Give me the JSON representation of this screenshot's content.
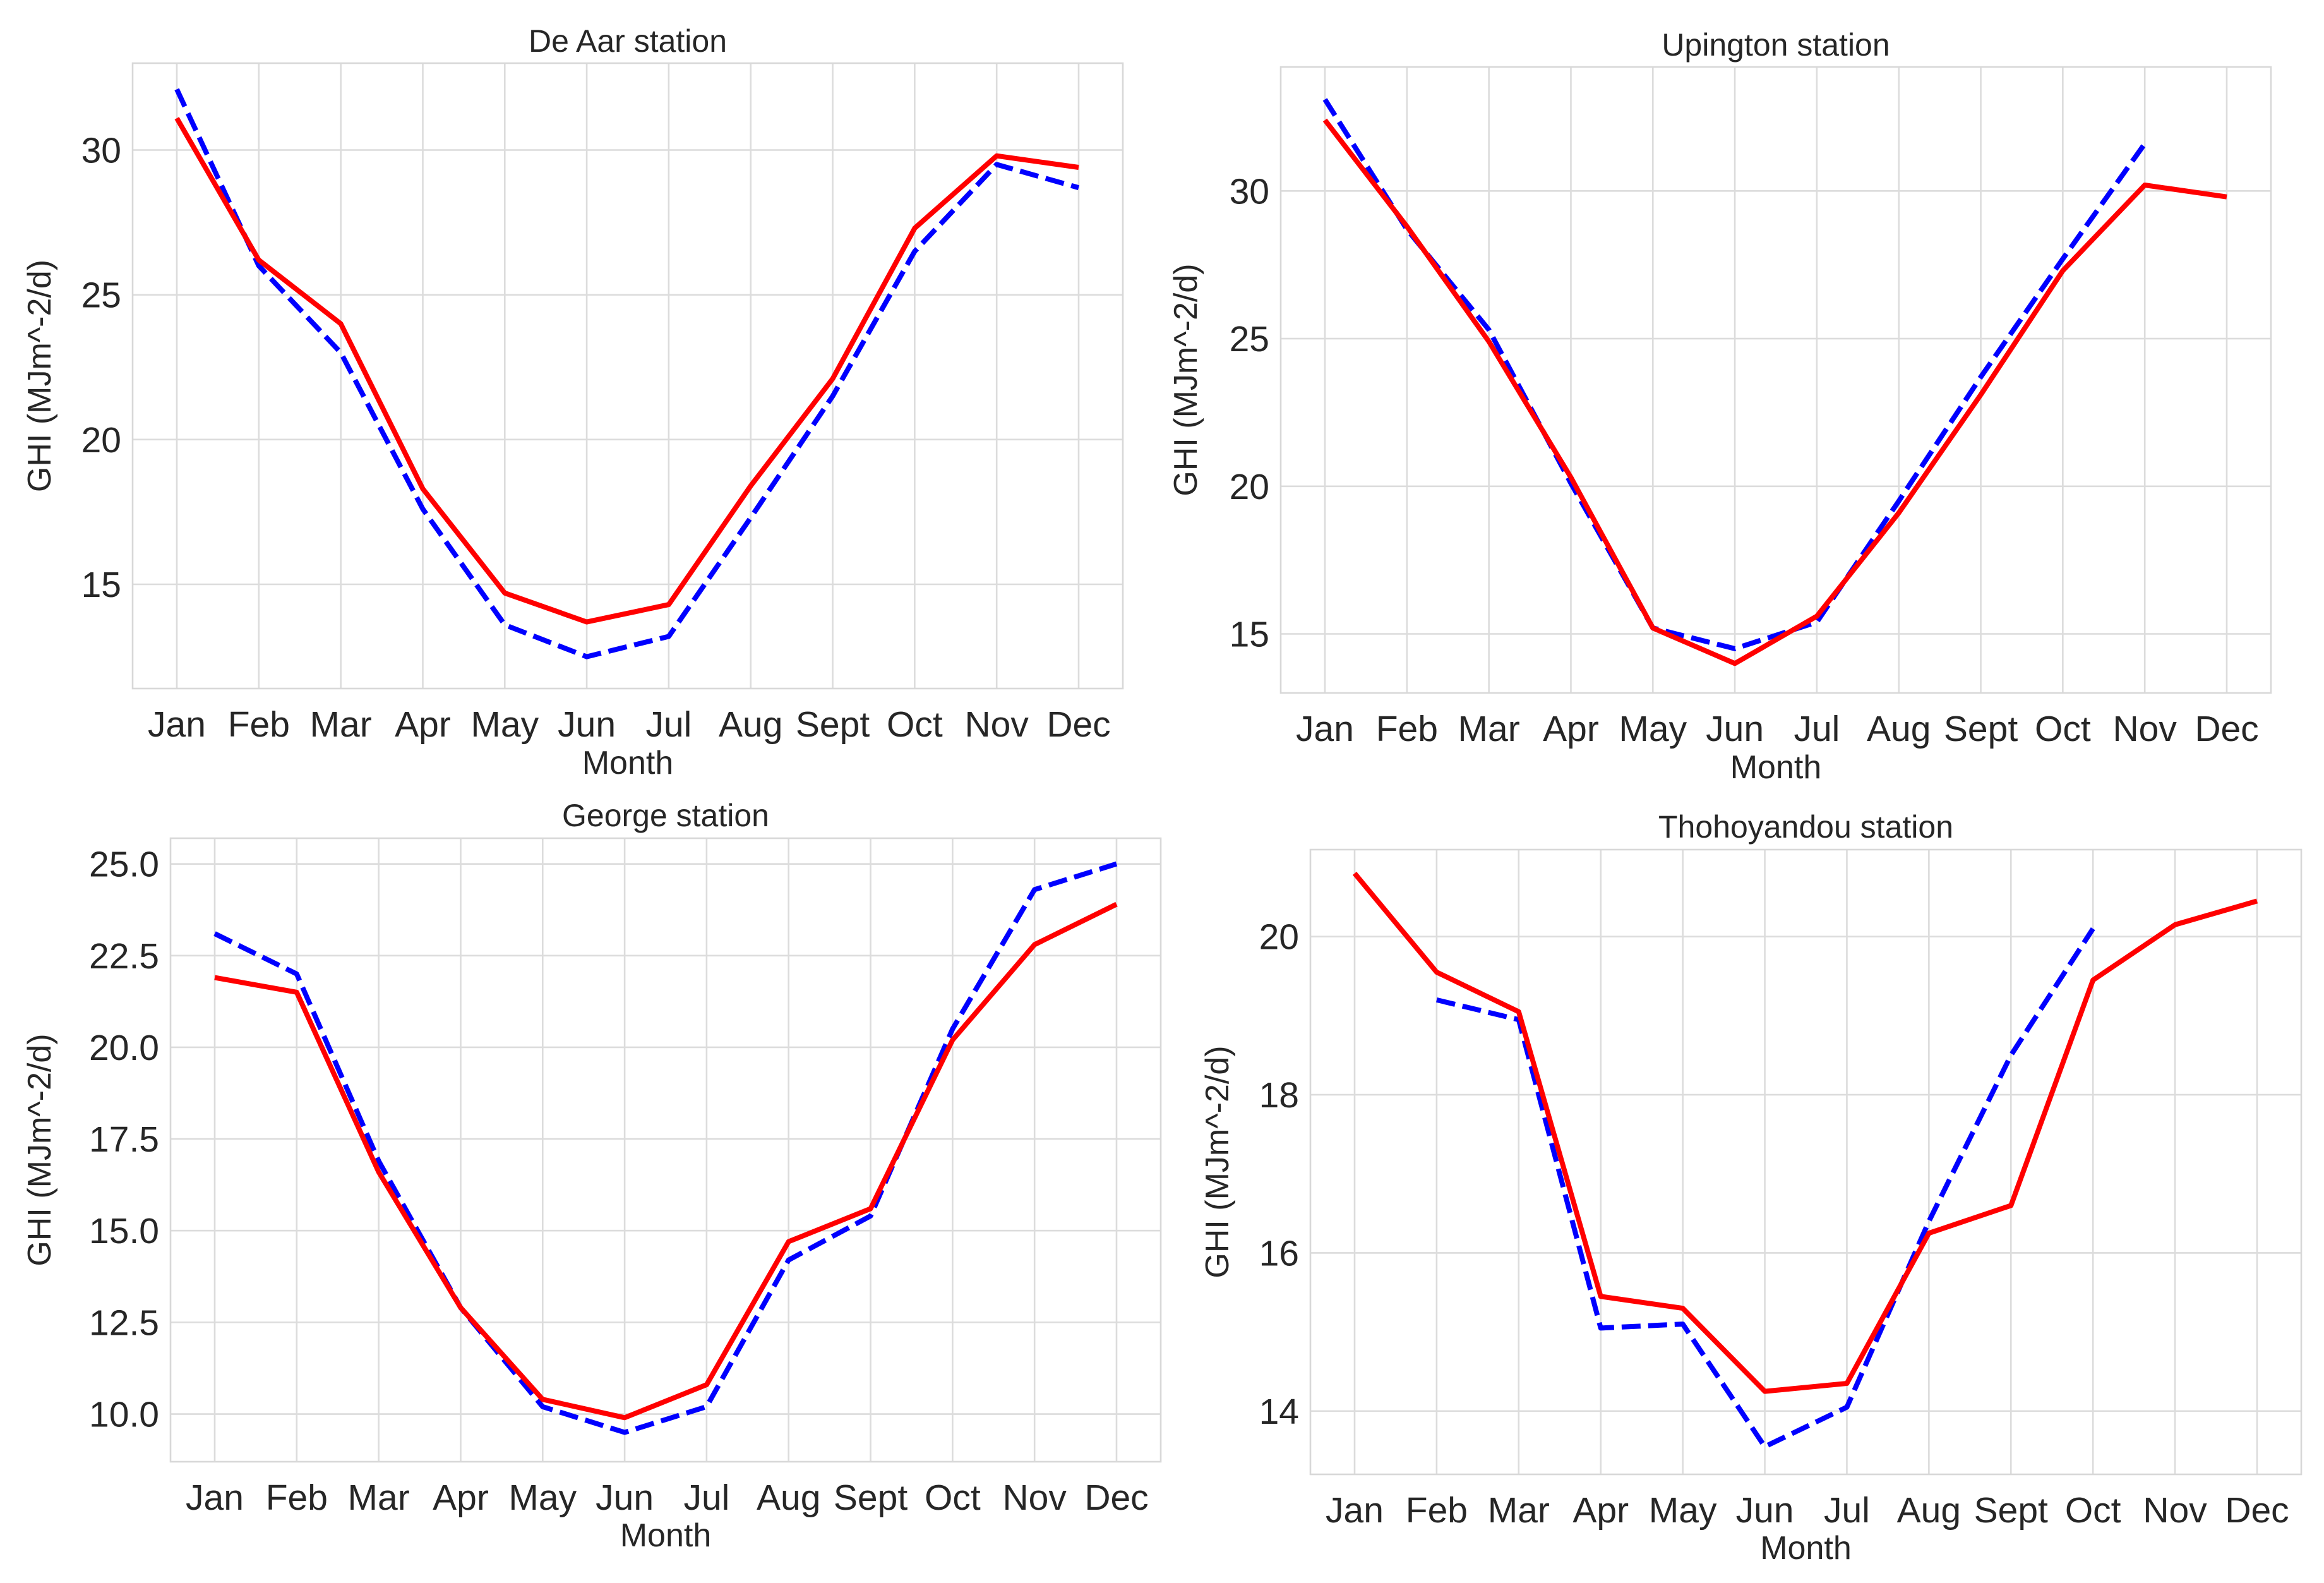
{
  "colors": {
    "red": "#ff0000",
    "blue": "#0000ff",
    "grid": "#dcdcdc",
    "text": "#262626"
  },
  "chart_data": [
    {
      "type": "line",
      "title": "De Aar station",
      "xlabel": "Month",
      "ylabel": "GHI (MJm^-2/d)",
      "categories": [
        "Jan",
        "Feb",
        "Mar",
        "Apr",
        "May",
        "Jun",
        "Jul",
        "Aug",
        "Sept",
        "Oct",
        "Nov",
        "Dec"
      ],
      "ylim": [
        11.4,
        33.0
      ],
      "yticks": [
        "15",
        "20",
        "25",
        "30"
      ],
      "series": [
        {
          "name": "red solid",
          "style": "solid",
          "color": "#ff0000",
          "values": [
            31.1,
            26.2,
            24.0,
            18.3,
            14.7,
            13.7,
            14.3,
            18.4,
            22.1,
            27.3,
            29.8,
            29.4
          ]
        },
        {
          "name": "blue dashed",
          "style": "dashed",
          "color": "#0000ff",
          "values": [
            32.1,
            26.0,
            23.0,
            17.6,
            13.6,
            12.5,
            13.2,
            17.3,
            21.5,
            26.5,
            29.5,
            28.7
          ]
        }
      ]
    },
    {
      "type": "line",
      "title": "Upington station",
      "xlabel": "Month",
      "ylabel": "GHI (MJm^-2/d)",
      "categories": [
        "Jan",
        "Feb",
        "Mar",
        "Apr",
        "May",
        "Jun",
        "Jul",
        "Aug",
        "Sept",
        "Oct",
        "Nov",
        "Dec"
      ],
      "ylim": [
        13.0,
        34.2
      ],
      "yticks": [
        "15",
        "20",
        "25",
        "30"
      ],
      "series": [
        {
          "name": "red solid",
          "style": "solid",
          "color": "#ff0000",
          "values": [
            32.4,
            28.8,
            24.9,
            20.3,
            15.2,
            14.0,
            15.6,
            19.1,
            23.1,
            27.3,
            30.2,
            29.8
          ]
        },
        {
          "name": "blue dashed",
          "style": "dashed",
          "color": "#0000ff",
          "values": [
            33.1,
            28.7,
            25.3,
            20.1,
            15.2,
            14.5,
            15.4,
            19.5,
            23.7,
            27.7,
            31.6,
            null
          ]
        }
      ]
    },
    {
      "type": "line",
      "title": "George station",
      "xlabel": "Month",
      "ylabel": "GHI (MJm^-2/d)",
      "categories": [
        "Jan",
        "Feb",
        "Mar",
        "Apr",
        "May",
        "Jun",
        "Jul",
        "Aug",
        "Sept",
        "Oct",
        "Nov",
        "Dec"
      ],
      "ylim": [
        8.7,
        25.7
      ],
      "yticks": [
        "10.0",
        "12.5",
        "15.0",
        "17.5",
        "20.0",
        "22.5",
        "25.0"
      ],
      "series": [
        {
          "name": "red solid",
          "style": "solid",
          "color": "#ff0000",
          "values": [
            21.9,
            21.5,
            16.6,
            12.9,
            10.4,
            9.9,
            10.8,
            14.7,
            15.6,
            20.2,
            22.8,
            23.9
          ]
        },
        {
          "name": "blue dashed",
          "style": "dashed",
          "color": "#0000ff",
          "values": [
            23.1,
            22.0,
            16.9,
            12.9,
            10.2,
            9.5,
            10.2,
            14.2,
            15.4,
            20.5,
            24.3,
            25.0
          ]
        }
      ]
    },
    {
      "type": "line",
      "title": "Thohoyandou station",
      "xlabel": "Month",
      "ylabel": "GHI (MJm^-2/d)",
      "categories": [
        "Jan",
        "Feb",
        "Mar",
        "Apr",
        "May",
        "Jun",
        "Jul",
        "Aug",
        "Sept",
        "Oct",
        "Nov",
        "Dec"
      ],
      "ylim": [
        13.2,
        21.1
      ],
      "yticks": [
        "14",
        "16",
        "18",
        "20"
      ],
      "series": [
        {
          "name": "red solid",
          "style": "solid",
          "color": "#ff0000",
          "values": [
            20.8,
            19.55,
            19.05,
            15.45,
            15.3,
            14.25,
            14.35,
            16.25,
            16.6,
            19.45,
            20.15,
            20.45
          ]
        },
        {
          "name": "blue dashed",
          "style": "dashed",
          "color": "#0000ff",
          "values": [
            null,
            19.2,
            18.95,
            15.05,
            15.1,
            13.55,
            14.05,
            16.4,
            18.5,
            20.1,
            null,
            null
          ]
        }
      ]
    }
  ]
}
